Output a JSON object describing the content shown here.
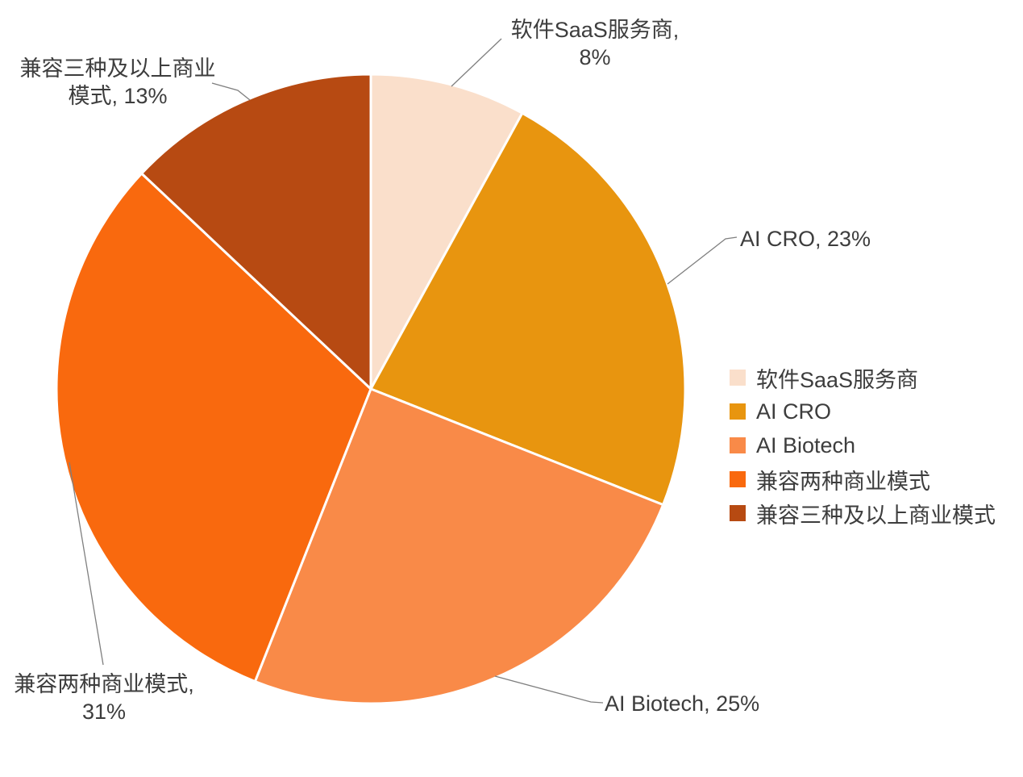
{
  "chart_data": {
    "type": "pie",
    "title": "",
    "unit": "%",
    "total": 100,
    "start_angle_deg": 0,
    "direction": "clockwise",
    "grid": false,
    "legend_position": "right",
    "slices": [
      {
        "key": "saas",
        "label": "软件SaaS服务商",
        "value": 8,
        "color": "#FADFCB",
        "callout": "软件SaaS服务商,\n8%"
      },
      {
        "key": "ai-cro",
        "label": "AI CRO",
        "value": 23,
        "color": "#E8950F",
        "callout": "AI CRO, 23%"
      },
      {
        "key": "ai-biotech",
        "label": "AI Biotech",
        "value": 25,
        "color": "#F98A48",
        "callout": "AI Biotech, 25%"
      },
      {
        "key": "two-models",
        "label": "兼容两种商业模式",
        "value": 31,
        "color": "#F9690E",
        "callout": "兼容两种商业模式,\n31%"
      },
      {
        "key": "three-plus-models",
        "label": "兼容三种及以上商业模式",
        "value": 13,
        "color": "#B74A12",
        "callout": "兼容三种及以上商业\n模式, 13%"
      }
    ]
  },
  "style": {
    "background": "#ffffff",
    "text_color": "#3d3d3d",
    "leader_line_color": "#7f7f7f",
    "slice_border_color": "#ffffff"
  }
}
